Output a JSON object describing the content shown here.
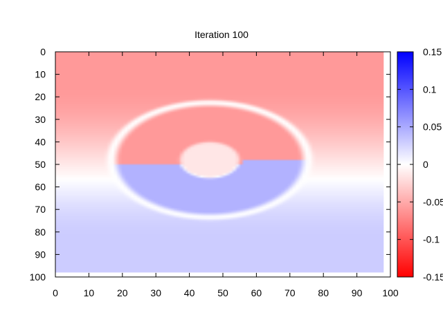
{
  "chart_data": {
    "type": "heatmap",
    "title": "Iteration 100",
    "xlabel": "",
    "ylabel": "",
    "xlim": [
      0,
      100
    ],
    "ylim": [
      100,
      0
    ],
    "y_axis_inverted": true,
    "x_ticks": [
      "0",
      "10",
      "20",
      "30",
      "40",
      "50",
      "60",
      "70",
      "80",
      "90",
      "100"
    ],
    "y_ticks": [
      "0",
      "10",
      "20",
      "30",
      "40",
      "50",
      "60",
      "70",
      "80",
      "90",
      "100"
    ],
    "colorbar": {
      "range": [
        -0.15,
        0.15
      ],
      "ticks": [
        "0.15",
        "0.1",
        "0.05",
        "0",
        "-0.05",
        "-0.1",
        "-0.15"
      ],
      "colors": {
        "low": "#ff0000",
        "mid": "#ffffff",
        "high": "#0000ff"
      }
    },
    "data_extent": {
      "x": [
        0,
        98
      ],
      "y": [
        0,
        98
      ]
    },
    "field": {
      "description_free": true,
      "background_top_value": -0.06,
      "background_bottom_value": 0.03,
      "ring": {
        "center": [
          47,
          49
        ],
        "outer_radius": [
          30,
          26
        ],
        "inner_radius": [
          10,
          9
        ],
        "upper_half_value": -0.06,
        "lower_half_value": 0.045,
        "inner_disk_value": -0.015
      }
    },
    "grid": false,
    "legend": "none"
  }
}
